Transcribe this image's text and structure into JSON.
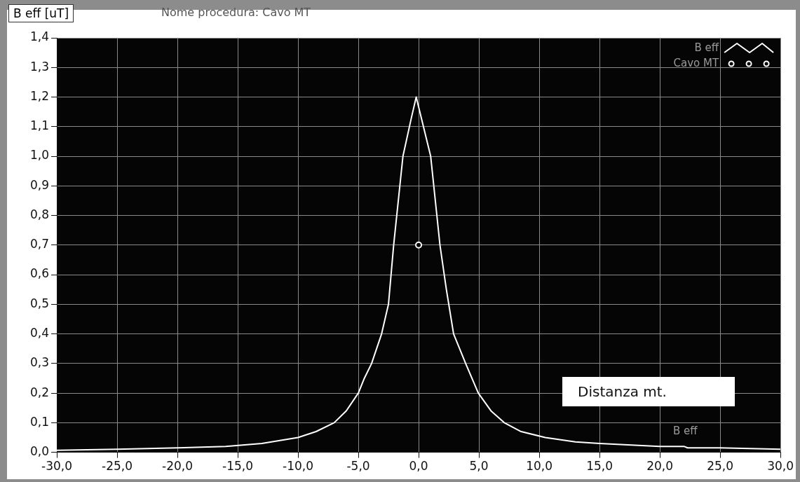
{
  "chart_data": {
    "type": "line",
    "subtitle": "Nome procedura: Cavo MT",
    "ylabel": "B eff [uT]",
    "xlabel": "Distanza mt.",
    "annotations": [
      "B eff"
    ],
    "xlim": [
      -30,
      30
    ],
    "xticks": [
      {
        "value": -30,
        "label": "-30,0"
      },
      {
        "value": -25,
        "label": "-25,0"
      },
      {
        "value": -20,
        "label": "-20,0"
      },
      {
        "value": -15,
        "label": "-15,0"
      },
      {
        "value": -10,
        "label": "-10,0"
      },
      {
        "value": -5,
        "label": "-5,0"
      },
      {
        "value": 0,
        "label": "0,0"
      },
      {
        "value": 5,
        "label": "5,0"
      },
      {
        "value": 10,
        "label": "10,0"
      },
      {
        "value": 15,
        "label": "15,0"
      },
      {
        "value": 20,
        "label": "20,0"
      },
      {
        "value": 25,
        "label": "25,0"
      },
      {
        "value": 30,
        "label": "30,0"
      }
    ],
    "ylim": [
      0,
      1.4
    ],
    "yticks": [
      {
        "value": 0,
        "label": "0,0"
      },
      {
        "value": 0.1,
        "label": "0,1"
      },
      {
        "value": 0.2,
        "label": "0,2"
      },
      {
        "value": 0.3,
        "label": "0,3"
      },
      {
        "value": 0.4,
        "label": "0,4"
      },
      {
        "value": 0.5,
        "label": "0,5"
      },
      {
        "value": 0.6,
        "label": "0,6"
      },
      {
        "value": 0.7,
        "label": "0,7"
      },
      {
        "value": 0.8,
        "label": "0,8"
      },
      {
        "value": 0.9,
        "label": "0,9"
      },
      {
        "value": 1.0,
        "label": "1,0"
      },
      {
        "value": 1.1,
        "label": "1,1"
      },
      {
        "value": 1.2,
        "label": "1,2"
      },
      {
        "value": 1.3,
        "label": "1,3"
      },
      {
        "value": 1.4,
        "label": "1,4"
      }
    ],
    "grid": true,
    "legend": "top right",
    "series": [
      {
        "name": "B eff",
        "type": "line",
        "color": "#ffffff",
        "marker": "none",
        "x": [
          -30,
          -25,
          -20,
          -16,
          -13,
          -10,
          -8.5,
          -7,
          -6,
          -5,
          -4.5,
          -3.9,
          -3.07,
          -2.5,
          -2.07,
          -1.3,
          -0.6,
          -0.2,
          0.4,
          1.0,
          1.77,
          2.3,
          2.9,
          3.9,
          4.95,
          6,
          7.1,
          8.5,
          10.5,
          13,
          15,
          20,
          22,
          22.3,
          25,
          30
        ],
        "values": [
          0.007,
          0.01,
          0.015,
          0.02,
          0.03,
          0.05,
          0.07,
          0.1,
          0.14,
          0.2,
          0.25,
          0.3,
          0.4,
          0.5,
          0.7,
          1.0,
          1.13,
          1.2,
          1.1,
          1.0,
          0.7,
          0.55,
          0.4,
          0.3,
          0.2,
          0.14,
          0.1,
          0.07,
          0.05,
          0.035,
          0.03,
          0.02,
          0.02,
          0.015,
          0.015,
          0.01
        ]
      },
      {
        "name": "Cavo MT",
        "type": "scatter",
        "color": "#ffffff",
        "marker": "circle",
        "x": [
          0
        ],
        "values": [
          0.7
        ]
      }
    ]
  }
}
